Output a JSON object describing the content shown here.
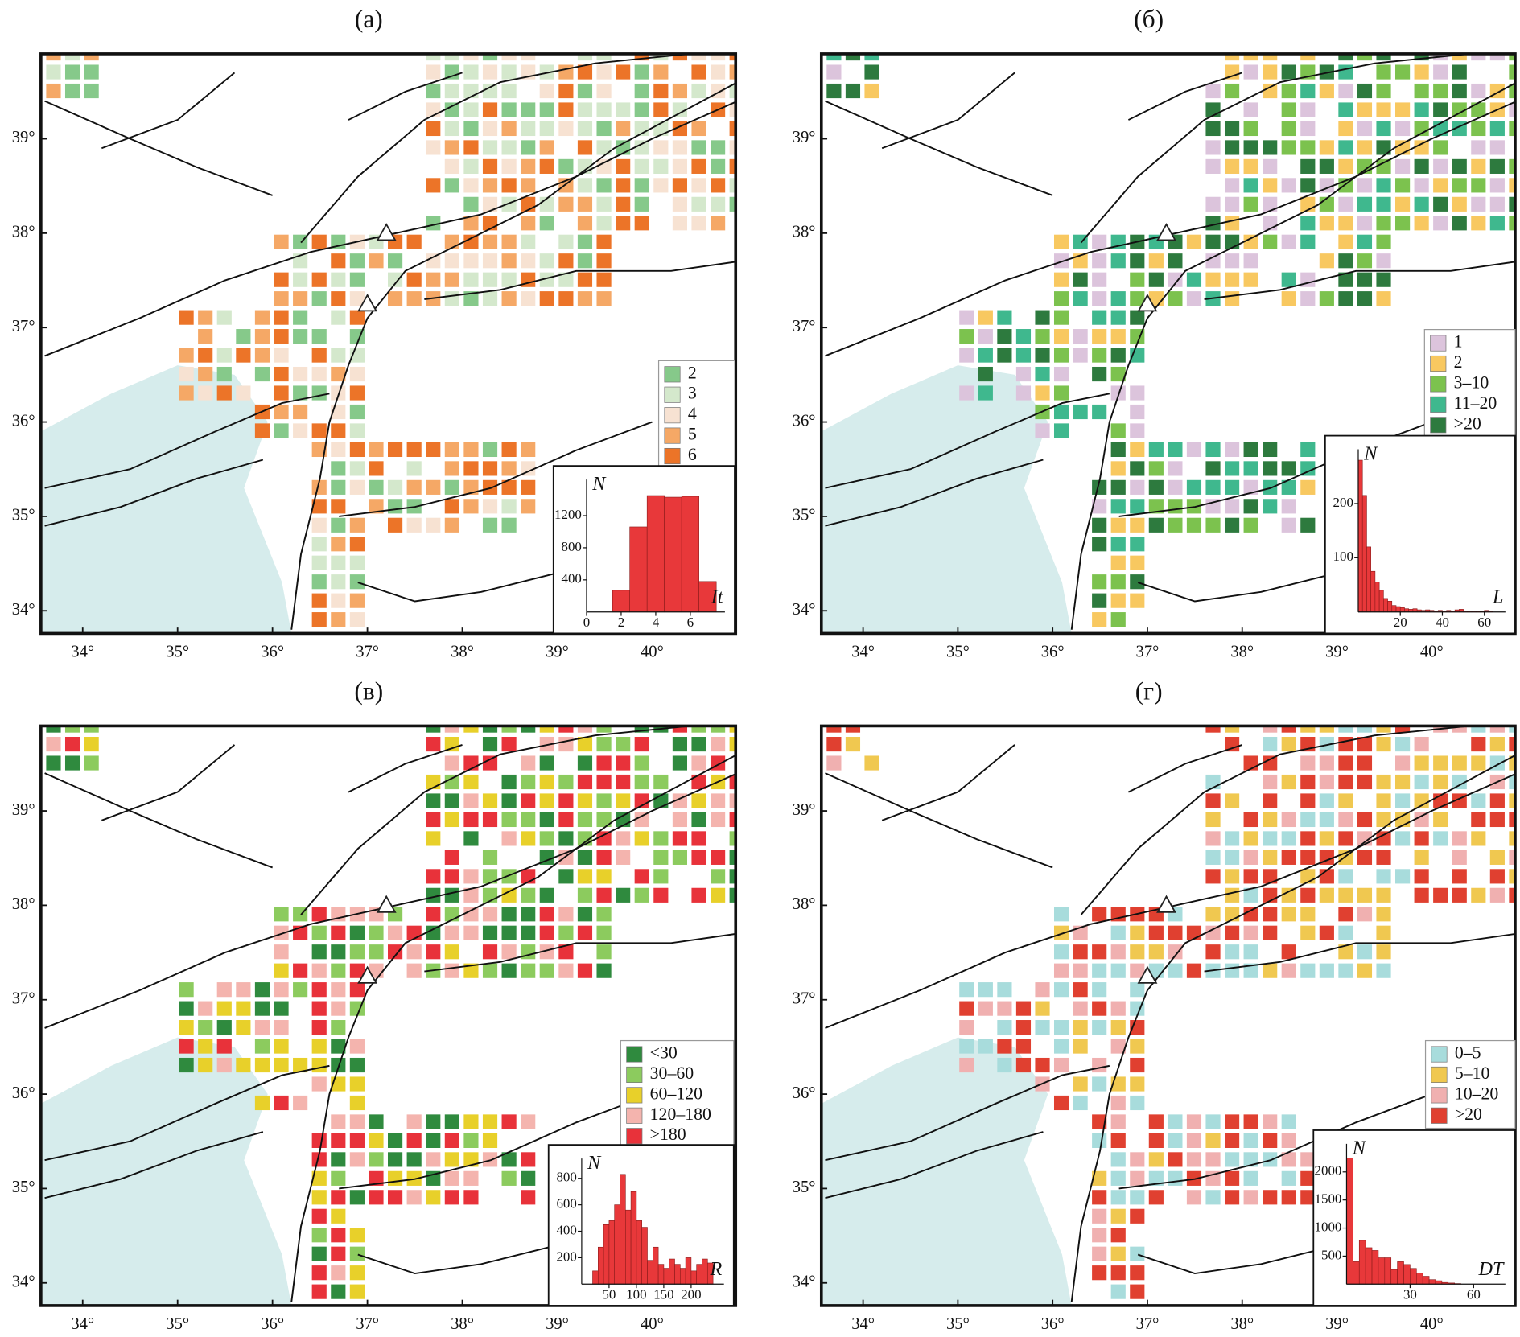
{
  "chart_data": [
    {
      "type": "map",
      "title": "(а)",
      "xlim": [
        33.56,
        40.88
      ],
      "ylim": [
        33.76,
        39.9
      ],
      "xticks": [
        {
          "value": 34,
          "label": "34°"
        },
        {
          "value": 35,
          "label": "35°"
        },
        {
          "value": 36,
          "label": "36°"
        },
        {
          "value": 37,
          "label": "37°"
        },
        {
          "value": 38,
          "label": "38°"
        },
        {
          "value": 39,
          "label": "39°"
        },
        {
          "value": 40,
          "label": "40°"
        }
      ],
      "yticks": [
        {
          "value": 34,
          "label": "34°"
        },
        {
          "value": 35,
          "label": "35°"
        },
        {
          "value": 36,
          "label": "36°"
        },
        {
          "value": 37,
          "label": "37°"
        },
        {
          "value": 38,
          "label": "38°"
        },
        {
          "value": 39,
          "label": "39°"
        }
      ],
      "legend": [
        {
          "label": "2",
          "color": "#86c98a"
        },
        {
          "label": "3",
          "color": "#d4e8cc"
        },
        {
          "label": "4",
          "color": "#f7e2d2"
        },
        {
          "label": "5",
          "color": "#f5a866"
        },
        {
          "label": "6",
          "color": "#ec7428"
        }
      ],
      "inset": {
        "type": "histogram",
        "ylabel": "N",
        "xlabel": "It",
        "color": "#e8383a",
        "bins": [
          1.5,
          2.5,
          3.5,
          4.5,
          5.5,
          6.5,
          7.5
        ],
        "values": [
          270,
          1060,
          1450,
          1430,
          1440,
          380
        ],
        "xlim": [
          0,
          8
        ],
        "ylim": [
          0,
          1650
        ],
        "xticks": [
          0,
          2,
          4,
          6
        ],
        "yticks": [
          400,
          800,
          1200
        ]
      }
    },
    {
      "type": "map",
      "title": "(б)",
      "xlim": [
        33.56,
        40.88
      ],
      "ylim": [
        33.76,
        39.9
      ],
      "xticks": [
        {
          "value": 34,
          "label": "34°"
        },
        {
          "value": 35,
          "label": "35°"
        },
        {
          "value": 36,
          "label": "36°"
        },
        {
          "value": 37,
          "label": "37°"
        },
        {
          "value": 38,
          "label": "38°"
        },
        {
          "value": 39,
          "label": "39°"
        },
        {
          "value": 40,
          "label": "40°"
        }
      ],
      "yticks": [
        {
          "value": 34,
          "label": "34°"
        },
        {
          "value": 35,
          "label": "35°"
        },
        {
          "value": 36,
          "label": "36°"
        },
        {
          "value": 37,
          "label": "37°"
        },
        {
          "value": 38,
          "label": "38°"
        },
        {
          "value": 39,
          "label": "39°"
        }
      ],
      "legend": [
        {
          "label": "1",
          "color": "#dcc4dc"
        },
        {
          "label": "2",
          "color": "#f8c860"
        },
        {
          "label": "3–10",
          "color": "#7cc24e"
        },
        {
          "label": "11–20",
          "color": "#3fb88e"
        },
        {
          "label": ">20",
          "color": "#2d7a3e"
        }
      ],
      "inset": {
        "type": "histogram",
        "ylabel": "N",
        "xlabel": "L",
        "color": "#e8383a",
        "bins": [
          0,
          2,
          4,
          6,
          8,
          10,
          12,
          14,
          16,
          18,
          20,
          22,
          24,
          26,
          28,
          30,
          32,
          34,
          36,
          38,
          40,
          42,
          44,
          46,
          48,
          50,
          52,
          54,
          56,
          58,
          60,
          62,
          64
        ],
        "values": [
          280,
          215,
          120,
          75,
          55,
          40,
          25,
          20,
          12,
          10,
          8,
          6,
          5,
          6,
          4,
          3,
          4,
          3,
          2,
          3,
          2,
          3,
          2,
          4,
          5,
          2,
          2,
          2,
          2,
          1,
          3,
          2
        ],
        "xlim": [
          0,
          70
        ],
        "ylim": [
          0,
          300
        ],
        "xticks": [
          20,
          40,
          60
        ],
        "yticks": [
          100,
          200
        ]
      }
    },
    {
      "type": "map",
      "title": "(в)",
      "xlim": [
        33.56,
        40.88
      ],
      "ylim": [
        33.76,
        39.9
      ],
      "xticks": [
        {
          "value": 34,
          "label": "34°"
        },
        {
          "value": 35,
          "label": "35°"
        },
        {
          "value": 36,
          "label": "36°"
        },
        {
          "value": 37,
          "label": "37°"
        },
        {
          "value": 38,
          "label": "38°"
        },
        {
          "value": 39,
          "label": "39°"
        },
        {
          "value": 40,
          "label": "40°"
        }
      ],
      "yticks": [
        {
          "value": 34,
          "label": "34°"
        },
        {
          "value": 35,
          "label": "35°"
        },
        {
          "value": 36,
          "label": "36°"
        },
        {
          "value": 37,
          "label": "37°"
        },
        {
          "value": 38,
          "label": "38°"
        },
        {
          "value": 39,
          "label": "39°"
        }
      ],
      "legend": [
        {
          "label": "<30",
          "color": "#2f8a3e"
        },
        {
          "label": "30–60",
          "color": "#8ccb5e"
        },
        {
          "label": "60–120",
          "color": "#e8d02a"
        },
        {
          "label": "120–180",
          "color": "#f4b4ae"
        },
        {
          "label": ">180",
          "color": "#e8323a"
        }
      ],
      "inset": {
        "type": "histogram",
        "ylabel": "N",
        "xlabel": "R",
        "color": "#e8383a",
        "bins": [
          20,
          30,
          40,
          50,
          60,
          70,
          80,
          90,
          100,
          110,
          120,
          130,
          140,
          150,
          160,
          170,
          180,
          190,
          200,
          210,
          220,
          230,
          240
        ],
        "values": [
          100,
          280,
          450,
          480,
          600,
          830,
          560,
          700,
          480,
          430,
          180,
          280,
          150,
          120,
          190,
          150,
          120,
          200,
          100,
          150,
          190,
          160
        ],
        "xlim": [
          0,
          260
        ],
        "ylim": [
          0,
          950
        ],
        "xticks": [
          50,
          100,
          150,
          200
        ],
        "yticks": [
          200,
          400,
          600,
          800
        ]
      }
    },
    {
      "type": "map",
      "title": "(г)",
      "xlim": [
        33.56,
        40.88
      ],
      "ylim": [
        33.76,
        39.9
      ],
      "xticks": [
        {
          "value": 34,
          "label": "34°"
        },
        {
          "value": 35,
          "label": "35°"
        },
        {
          "value": 36,
          "label": "36°"
        },
        {
          "value": 37,
          "label": "37°"
        },
        {
          "value": 38,
          "label": "38°"
        },
        {
          "value": 39,
          "label": "39°"
        },
        {
          "value": 40,
          "label": "40°"
        }
      ],
      "yticks": [
        {
          "value": 34,
          "label": "34°"
        },
        {
          "value": 35,
          "label": "35°"
        },
        {
          "value": 36,
          "label": "36°"
        },
        {
          "value": 37,
          "label": "37°"
        },
        {
          "value": 38,
          "label": "38°"
        },
        {
          "value": 39,
          "label": "39°"
        }
      ],
      "legend": [
        {
          "label": "0–5",
          "color": "#a8dcdc"
        },
        {
          "label": "5–10",
          "color": "#f0c850"
        },
        {
          "label": "10–20",
          "color": "#f0b0b0"
        },
        {
          "label": ">20",
          "color": "#e04030"
        }
      ],
      "inset": {
        "type": "histogram",
        "ylabel": "N",
        "xlabel": "DT",
        "color": "#e8383a",
        "bins": [
          0,
          3,
          6,
          9,
          12,
          15,
          18,
          21,
          24,
          27,
          30,
          33,
          36,
          39,
          42,
          45,
          48,
          51,
          54
        ],
        "values": [
          2250,
          400,
          780,
          650,
          600,
          470,
          470,
          260,
          400,
          350,
          280,
          200,
          140,
          80,
          60,
          30,
          20,
          10
        ],
        "xlim": [
          0,
          75
        ],
        "ylim": [
          0,
          2500
        ],
        "xticks": [
          30,
          60
        ],
        "yticks": [
          500,
          1000,
          1500,
          2000
        ]
      }
    }
  ]
}
